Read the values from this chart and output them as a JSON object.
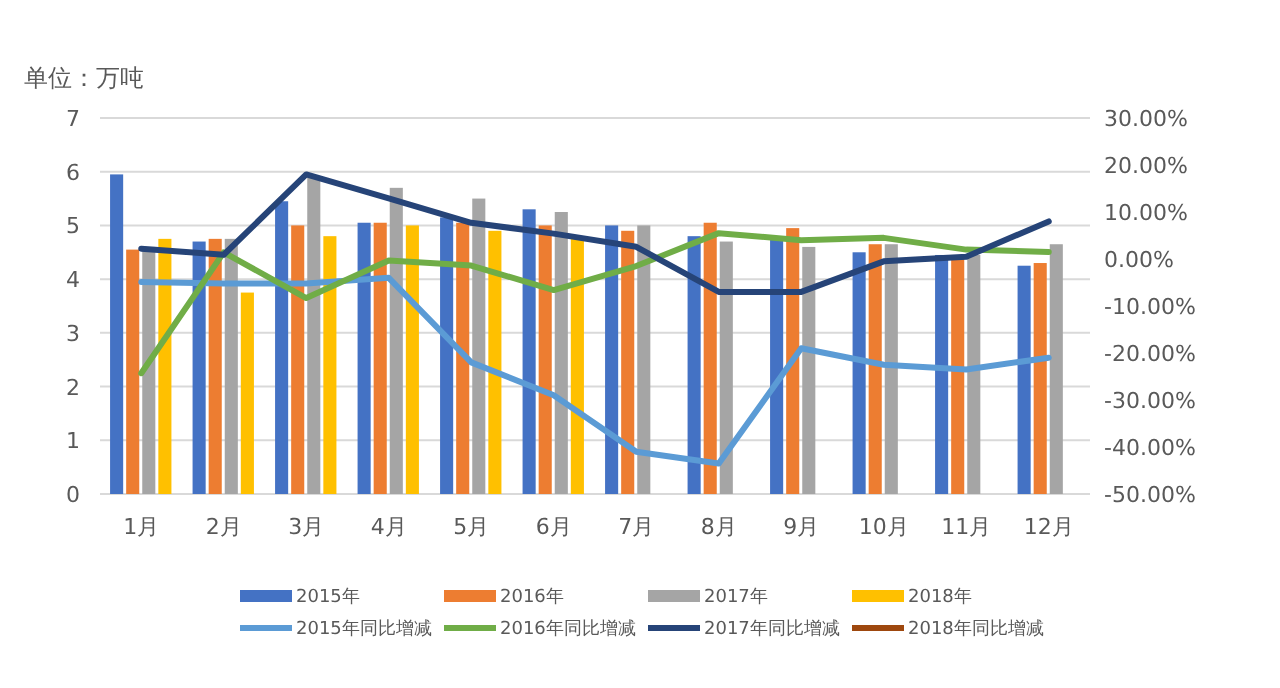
{
  "chart_data": {
    "type": "bar",
    "ylabel": "单位：万吨",
    "categories": [
      "1月",
      "2月",
      "3月",
      "4月",
      "5月",
      "6月",
      "7月",
      "8月",
      "9月",
      "10月",
      "11月",
      "12月"
    ],
    "series": [
      {
        "name": "2015年",
        "color": "#4472c4",
        "values": [
          5.95,
          4.7,
          5.45,
          5.05,
          5.15,
          5.3,
          5.0,
          4.8,
          4.8,
          4.5,
          4.45,
          4.25
        ]
      },
      {
        "name": "2016年",
        "color": "#ed7d31",
        "values": [
          4.55,
          4.75,
          5.0,
          5.05,
          5.05,
          5.0,
          4.9,
          5.05,
          4.95,
          4.65,
          4.45,
          4.3
        ]
      },
      {
        "name": "2017年",
        "color": "#a5a5a5",
        "values": [
          4.6,
          4.75,
          5.9,
          5.7,
          5.5,
          5.25,
          5.0,
          4.7,
          4.6,
          4.65,
          4.45,
          4.65
        ]
      },
      {
        "name": "2018年",
        "color": "#ffc000",
        "values": [
          4.75,
          3.75,
          4.8,
          5.0,
          4.9,
          4.8,
          null,
          null,
          null,
          null,
          null,
          null
        ]
      },
      {
        "name": "2015年同比增减",
        "type": "line",
        "axis": "y2",
        "color": "#5b9bd5",
        "values": [
          -4.9,
          -5.2,
          -5.2,
          -4.0,
          -22,
          -29,
          -41,
          -43.5,
          -19,
          -22.5,
          -23.5,
          -21
        ]
      },
      {
        "name": "2016年同比增减",
        "type": "line",
        "axis": "y2",
        "color": "#70ad47",
        "values": [
          -24.3,
          1.4,
          -8.3,
          -0.3,
          -1.4,
          -6.6,
          -1.5,
          5.5,
          4,
          4.5,
          2,
          1.5
        ]
      },
      {
        "name": "2017年同比增减",
        "type": "line",
        "axis": "y2",
        "color": "#264478",
        "values": [
          2.2,
          0.9,
          18,
          12.9,
          7.7,
          5.4,
          2.6,
          -7,
          -7,
          -0.5,
          0.5,
          8
        ]
      },
      {
        "name": "2018年同比增减",
        "type": "line",
        "axis": "y2",
        "color": "#9e480e",
        "values": [
          null,
          null,
          null,
          null,
          null,
          null,
          null,
          null,
          null,
          null,
          null,
          null
        ]
      }
    ],
    "ylim": [
      0,
      7
    ],
    "yticks": [
      0,
      1,
      2,
      3,
      4,
      5,
      6,
      7
    ],
    "y2lim": [
      -50,
      30
    ],
    "y2ticks": [
      {
        "value": 30,
        "label": "30.00%"
      },
      {
        "value": 20,
        "label": "20.00%"
      },
      {
        "value": 10,
        "label": "10.00%"
      },
      {
        "value": 0,
        "label": "0.00%"
      },
      {
        "value": -10,
        "label": "-10.00%"
      },
      {
        "value": -20,
        "label": "-20.00%"
      },
      {
        "value": -30,
        "label": "-30.00%"
      },
      {
        "value": -40,
        "label": "-40.00%"
      },
      {
        "value": -50,
        "label": "-50.00%"
      }
    ],
    "grid": "y",
    "legend": "bottom"
  }
}
